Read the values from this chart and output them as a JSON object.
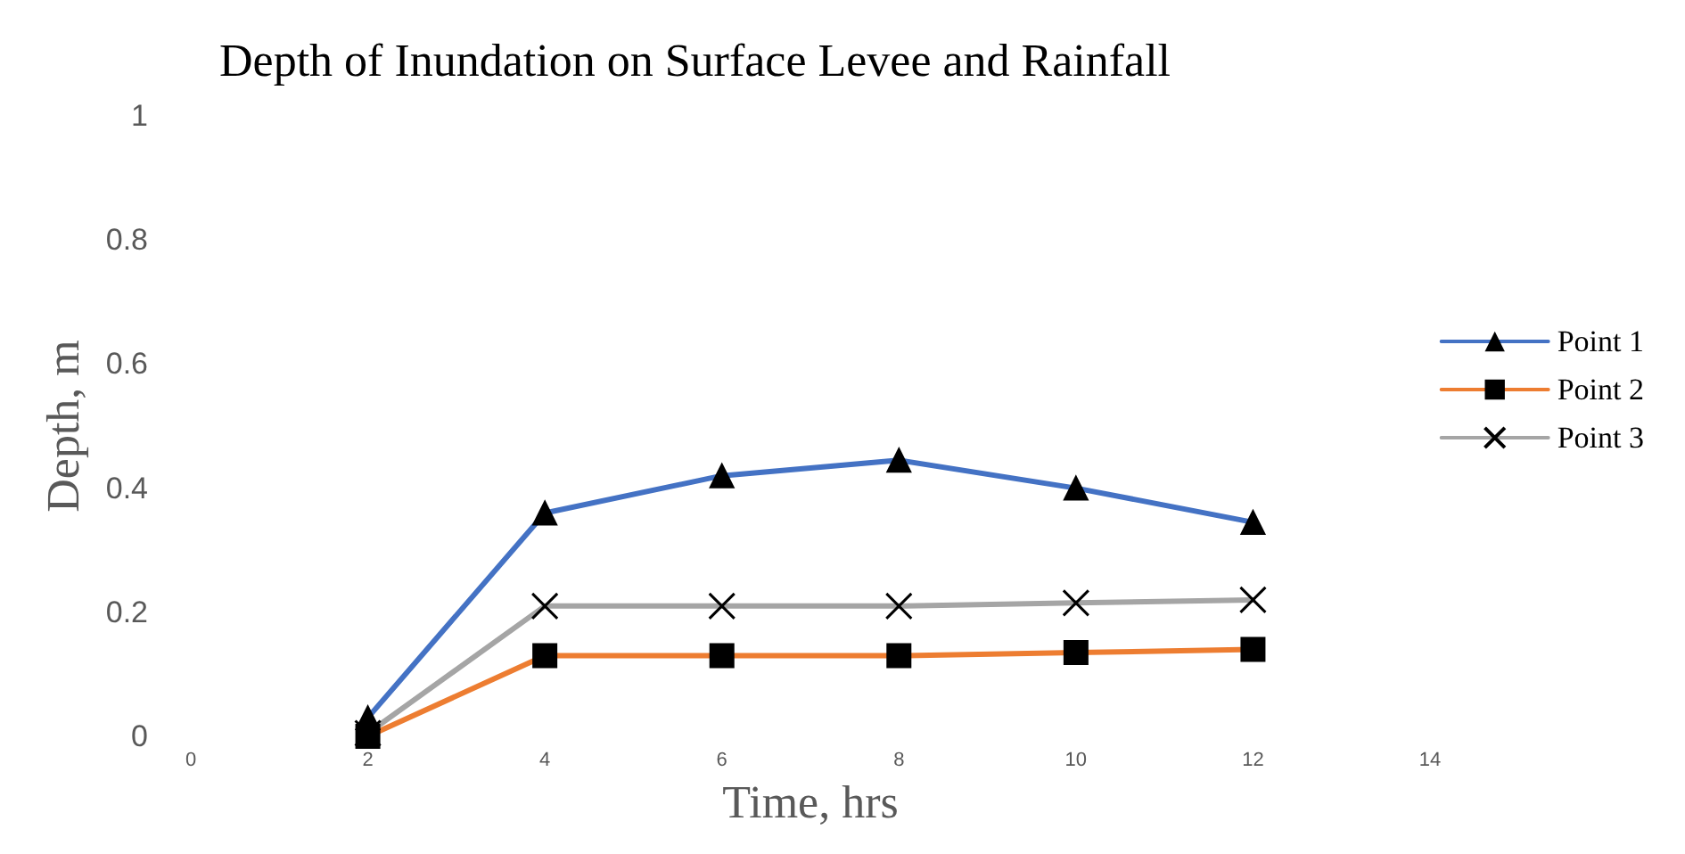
{
  "chart_data": {
    "type": "line",
    "title": "Depth of Inundation on Surface Levee and Rainfall",
    "xlabel": "Time, hrs",
    "ylabel": "Depth, m",
    "x": [
      2,
      4,
      6,
      8,
      10,
      12
    ],
    "series": [
      {
        "name": "Point 1",
        "color": "#4472c4",
        "marker": "triangle",
        "values": [
          0.03,
          0.36,
          0.42,
          0.445,
          0.4,
          0.345
        ]
      },
      {
        "name": "Point 2",
        "color": "#ed7d31",
        "marker": "square",
        "values": [
          0,
          0.13,
          0.13,
          0.13,
          0.135,
          0.14
        ]
      },
      {
        "name": "Point 3",
        "color": "#a5a5a5",
        "marker": "cross",
        "values": [
          0.005,
          0.21,
          0.21,
          0.21,
          0.215,
          0.22
        ]
      }
    ],
    "xlim": [
      0,
      14
    ],
    "xticks": [
      0,
      2,
      4,
      6,
      8,
      10,
      12,
      14
    ],
    "ylim": [
      0,
      1
    ],
    "yticks": [
      0,
      0.2,
      0.4,
      0.6,
      0.8,
      1
    ],
    "grid": false,
    "legend": "right",
    "line_style": "solid"
  }
}
